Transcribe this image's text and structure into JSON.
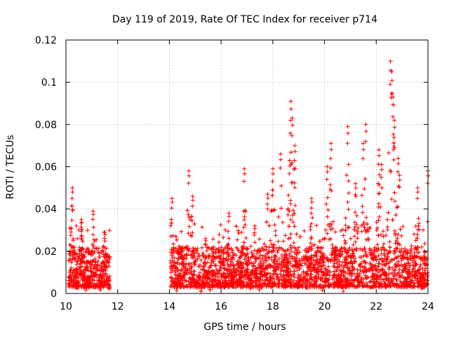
{
  "chart_data": {
    "type": "scatter",
    "title": "Day 119 of 2019, Rate Of TEC Index for receiver p714",
    "xlabel": "GPS time / hours",
    "ylabel": "ROTI / TECUs",
    "xlim": [
      10,
      24
    ],
    "ylim": [
      0,
      0.12
    ],
    "xticks": [
      10,
      12,
      14,
      16,
      18,
      20,
      22,
      24
    ],
    "yticks": [
      0,
      0.02,
      0.04,
      0.06,
      0.08,
      0.1,
      0.12
    ],
    "ytick_labels": [
      "0",
      "0.02",
      "0.04",
      "0.06",
      "0.08",
      "0.1",
      "0.12"
    ],
    "grid": true,
    "marker": "+",
    "color": "#ff0000",
    "segments": [
      {
        "start": 10.1,
        "end": 11.7,
        "peaks": [
          [
            10.25,
            0.05
          ],
          [
            10.6,
            0.035
          ],
          [
            11.05,
            0.039
          ],
          [
            11.5,
            0.029
          ]
        ]
      },
      {
        "start": 14.05,
        "end": 24.0,
        "peaks": [
          [
            14.1,
            0.045
          ],
          [
            14.75,
            0.058
          ],
          [
            14.9,
            0.046
          ],
          [
            15.4,
            0.026
          ],
          [
            16.3,
            0.038
          ],
          [
            16.9,
            0.059
          ],
          [
            17.3,
            0.032
          ],
          [
            17.8,
            0.047
          ],
          [
            18.0,
            0.059
          ],
          [
            18.3,
            0.066
          ],
          [
            18.65,
            0.063
          ],
          [
            18.7,
            0.091
          ],
          [
            18.75,
            0.083
          ],
          [
            18.85,
            0.07
          ],
          [
            19.5,
            0.045
          ],
          [
            20.1,
            0.06
          ],
          [
            20.25,
            0.071
          ],
          [
            20.9,
            0.079
          ],
          [
            21.2,
            0.052
          ],
          [
            21.6,
            0.08
          ],
          [
            21.5,
            0.071
          ],
          [
            22.1,
            0.068
          ],
          [
            22.2,
            0.061
          ],
          [
            22.55,
            0.11
          ],
          [
            22.6,
            0.105
          ],
          [
            22.65,
            0.093
          ],
          [
            22.7,
            0.082
          ],
          [
            22.85,
            0.064
          ],
          [
            22.9,
            0.056
          ],
          [
            23.6,
            0.05
          ],
          [
            24.0,
            0.058
          ]
        ]
      }
    ],
    "baseline_range": [
      0.003,
      0.022
    ]
  }
}
